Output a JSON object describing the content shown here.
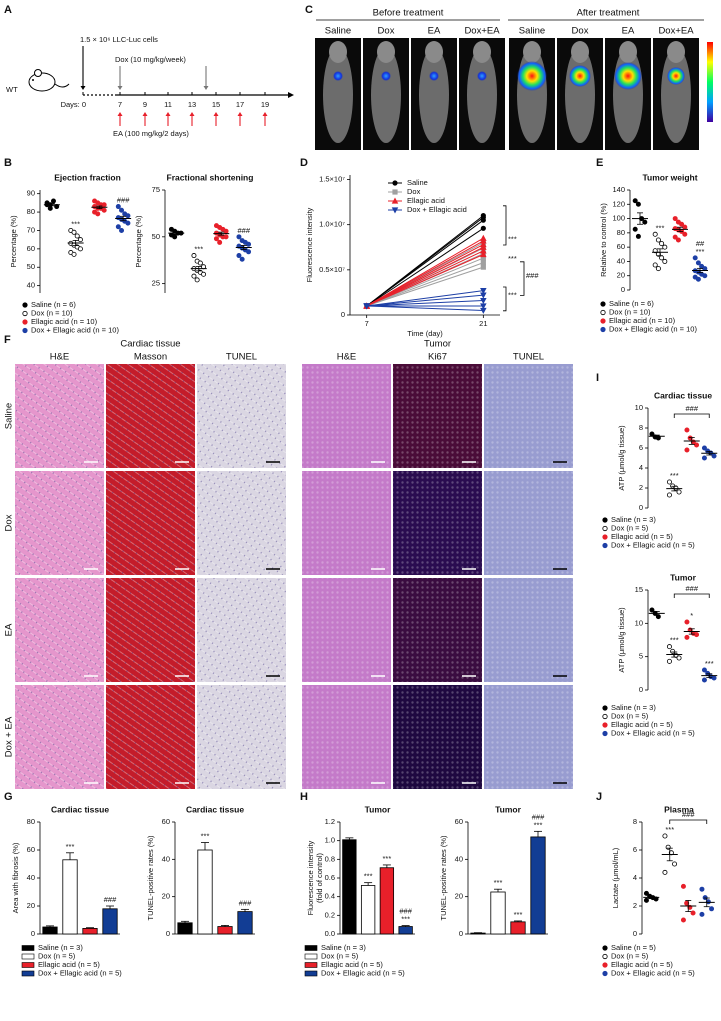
{
  "schematic": {
    "panel": "A",
    "strain": "WT",
    "cells": "1.5 × 10⁶ LLC-Luc cells",
    "dox": "Dox (10 mg/kg/week)",
    "ea": "EA (100 mg/kg/2 days)",
    "days_label": "Days: 0",
    "days": [
      "7",
      "9",
      "11",
      "13",
      "15",
      "17",
      "19"
    ]
  },
  "imaging": {
    "panel": "C",
    "before": "Before treatment",
    "after": "After treatment",
    "groups": [
      "Saline",
      "Dox",
      "EA",
      "Dox+EA"
    ]
  },
  "histology": {
    "panel": "F",
    "sections": [
      {
        "title": "Cardiac tissue",
        "stains": [
          "H&E",
          "Masson",
          "TUNEL"
        ]
      },
      {
        "title": "Tumor",
        "stains": [
          "H&E",
          "Ki67",
          "TUNEL"
        ]
      }
    ],
    "rows": [
      "Saline",
      "Dox",
      "EA",
      "Dox + EA"
    ]
  },
  "chart_data": [
    {
      "panel": "B",
      "type": "dot",
      "groups": [
        {
          "name": "Saline (n = 6)",
          "color": "#000000",
          "marker": "filled"
        },
        {
          "name": "Dox (n = 10)",
          "color": "#000000",
          "marker": "open"
        },
        {
          "name": "Ellagic acid (n = 10)",
          "color": "#e8202a",
          "marker": "filled"
        },
        {
          "name": "Dox + Ellagic acid (n = 10)",
          "color": "#1d3fa6",
          "marker": "filled"
        }
      ],
      "plots": [
        {
          "title": "Ejection fraction",
          "ylabel": "Percentage (%)",
          "ylim": [
            36,
            92
          ],
          "yticks": [
            40,
            50,
            60,
            70,
            80,
            90
          ],
          "values": [
            [
              85,
              84,
              86,
              83,
              84,
              82
            ],
            [
              70,
              69,
              67,
              65,
              63,
              62,
              61,
              60,
              58,
              57
            ],
            [
              86,
              85,
              84,
              84,
              83,
              82,
              82,
              81,
              80,
              79
            ],
            [
              83,
              81,
              79,
              78,
              77,
              76,
              75,
              74,
              72,
              70
            ]
          ],
          "means": [
            84,
            63.2,
            82.6,
            76.5
          ],
          "sems": [
            0.6,
            1.4,
            0.7,
            1.2
          ],
          "annotations": [
            null,
            [
              "***"
            ],
            null,
            [
              "###"
            ]
          ]
        },
        {
          "title": "Fractional shortening",
          "ylabel": "Percentage (%)",
          "ylim": [
            20,
            75
          ],
          "yticks": [
            25,
            50,
            75
          ],
          "values": [
            [
              54,
              53,
              52,
              52,
              51,
              50
            ],
            [
              40,
              37,
              36,
              34,
              33,
              32,
              31,
              30,
              29,
              27
            ],
            [
              56,
              55,
              54,
              53,
              52,
              51,
              50,
              50,
              49,
              47
            ],
            [
              50,
              48,
              47,
              46,
              45,
              44,
              43,
              42,
              40,
              38
            ]
          ],
          "means": [
            52,
            33,
            51.7,
            44.3
          ],
          "sems": [
            0.6,
            1.2,
            0.8,
            1.1
          ],
          "annotations": [
            null,
            [
              "***"
            ],
            null,
            [
              "###"
            ]
          ]
        }
      ]
    },
    {
      "panel": "D",
      "type": "line",
      "x": [
        7,
        21
      ],
      "xlim": [
        5,
        23
      ],
      "xticks": [
        7,
        21
      ],
      "xlabel": "Time (day)",
      "ylabel": "Fluorescence intensity",
      "ylim": [
        0,
        15500000
      ],
      "yticks": [
        0,
        {
          "value": 5000000,
          "label": "0.5×10⁷"
        },
        {
          "value": 10000000,
          "label": "1.0×10⁷"
        },
        {
          "value": 15000000,
          "label": "1.5×10⁷"
        }
      ],
      "series": [
        {
          "name": "Saline",
          "color": "#000000",
          "marker": "circle",
          "values": [
            [
              1000000,
              11000000
            ],
            [
              1000000,
              10800000
            ],
            [
              1000000,
              10500000
            ],
            [
              1000000,
              9600000
            ]
          ]
        },
        {
          "name": "Dox",
          "color": "#a0a0a0",
          "marker": "square",
          "values": [
            [
              1000000,
              8000000
            ],
            [
              1000000,
              7400000
            ],
            [
              1000000,
              6800000
            ],
            [
              1000000,
              6300000
            ],
            [
              1000000,
              5800000
            ],
            [
              1000000,
              5300000
            ]
          ]
        },
        {
          "name": "Ellagic acid",
          "color": "#e8202a",
          "marker": "triangle",
          "values": [
            [
              1000000,
              8500000
            ],
            [
              1000000,
              8200000
            ],
            [
              1000000,
              7800000
            ],
            [
              1000000,
              7500000
            ],
            [
              1000000,
              7100000
            ],
            [
              1000000,
              6700000
            ]
          ]
        },
        {
          "name": "Dox + Ellagic acid",
          "color": "#1d3fa6",
          "marker": "triangle-down",
          "values": [
            [
              1000000,
              2700000
            ],
            [
              1000000,
              2200000
            ],
            [
              1000000,
              1600000
            ],
            [
              1000000,
              1000000
            ],
            [
              1000000,
              500000
            ]
          ]
        }
      ],
      "annotations": [
        "***",
        "***",
        "***",
        "###"
      ]
    },
    {
      "panel": "E",
      "type": "dot",
      "groups": [
        {
          "name": "Saline (n = 6)",
          "color": "#000000",
          "marker": "filled"
        },
        {
          "name": "Dox (n = 10)",
          "color": "#000000",
          "marker": "open"
        },
        {
          "name": "Ellagic acid (n = 10)",
          "color": "#e8202a",
          "marker": "filled"
        },
        {
          "name": "Dox + Ellagic acid (n = 10)",
          "color": "#1d3fa6",
          "marker": "filled"
        }
      ],
      "plots": [
        {
          "title": "Tumor weight",
          "ylabel": "Relative to control (%)",
          "ylim": [
            0,
            140
          ],
          "yticks": [
            0,
            20,
            40,
            60,
            80,
            100,
            120,
            140
          ],
          "values": [
            [
              125,
              120,
              100,
              95,
              85,
              75
            ],
            [
              78,
              70,
              65,
              60,
              55,
              50,
              45,
              40,
              35,
              30
            ],
            [
              100,
              95,
              92,
              88,
              86,
              84,
              82,
              78,
              74,
              70
            ],
            [
              45,
              38,
              33,
              30,
              27,
              25,
              22,
              20,
              18,
              15
            ]
          ],
          "means": [
            100,
            52.8,
            84.9,
            27.3
          ],
          "sems": [
            8,
            4.8,
            3,
            3
          ],
          "annotations": [
            null,
            [
              "***"
            ],
            null,
            [
              "##",
              "***"
            ]
          ]
        }
      ]
    },
    {
      "panel": "I",
      "type": "dot",
      "groups": [
        {
          "name": "Saline (n = 3)",
          "color": "#000000",
          "marker": "filled"
        },
        {
          "name": "Dox (n = 5)",
          "color": "#000000",
          "marker": "open"
        },
        {
          "name": "Ellagic acid (n = 5)",
          "color": "#e8202a",
          "marker": "filled"
        },
        {
          "name": "Dox + Ellagic acid (n = 5)",
          "color": "#1d3fa6",
          "marker": "filled"
        }
      ],
      "plots": [
        {
          "title": "Cardiac tissue",
          "ylabel": "ATP (μmol/g tissue)",
          "ylim": [
            0,
            10
          ],
          "yticks": [
            0,
            2,
            4,
            6,
            8,
            10
          ],
          "values": [
            [
              7.4,
              7.1,
              7.0
            ],
            [
              2.6,
              2.2,
              2.0,
              1.6,
              1.3
            ],
            [
              7.8,
              7.0,
              6.6,
              6.3,
              5.8
            ],
            [
              6.0,
              5.7,
              5.5,
              5.2,
              5.0
            ]
          ],
          "means": [
            7.17,
            1.94,
            6.7,
            5.48
          ],
          "sems": [
            0.12,
            0.23,
            0.34,
            0.18
          ],
          "annotations": [
            null,
            [
              "***"
            ],
            null,
            null
          ],
          "bracket": {
            "from": 1,
            "to": 3,
            "label": "###"
          }
        }
      ]
    },
    {
      "type": "dot",
      "groups": [
        {
          "name": "Saline (n = 3)",
          "color": "#000000",
          "marker": "filled"
        },
        {
          "name": "Dox (n = 5)",
          "color": "#000000",
          "marker": "open"
        },
        {
          "name": "Ellagic acid (n = 5)",
          "color": "#e8202a",
          "marker": "filled"
        },
        {
          "name": "Dox + Ellagic acid (n = 5)",
          "color": "#1d3fa6",
          "marker": "filled"
        }
      ],
      "plots": [
        {
          "title": "Tumor",
          "ylabel": "ATP (μmol/g tissue)",
          "ylim": [
            0,
            15
          ],
          "yticks": [
            0,
            5,
            10,
            15
          ],
          "values": [
            [
              12,
              11.5,
              11
            ],
            [
              6.5,
              5.8,
              5.2,
              4.8,
              4.3
            ],
            [
              10.2,
              9.0,
              8.5,
              8.3,
              7.9
            ],
            [
              3.0,
              2.5,
              2.0,
              1.8,
              1.5
            ]
          ],
          "means": [
            11.5,
            5.32,
            8.78,
            2.16
          ],
          "sems": [
            0.29,
            0.38,
            0.4,
            0.27
          ],
          "annotations": [
            null,
            [
              "***"
            ],
            [
              "*"
            ],
            [
              "***"
            ]
          ],
          "bracket": {
            "from": 1,
            "to": 3,
            "label": "###"
          }
        }
      ]
    },
    {
      "panel": "G",
      "type": "bar",
      "groups": [
        {
          "name": "Saline (n = 3)",
          "color": "#000000"
        },
        {
          "name": "Dox (n = 5)",
          "color": "#ffffff"
        },
        {
          "name": "Ellagic acid (n = 5)",
          "color": "#e8202a"
        },
        {
          "name": "Dox + Ellagic acid (n = 5)",
          "color": "#123d94"
        }
      ],
      "plots": [
        {
          "title": "Cardiac tissue",
          "ylabel": "Area with fibrosis (%)",
          "ylim": [
            0,
            80
          ],
          "yticks": [
            0,
            20,
            40,
            60,
            80
          ],
          "values": [
            5,
            53,
            4,
            18
          ],
          "errors": [
            0.8,
            5,
            0.5,
            2
          ],
          "annotations": [
            null,
            [
              "***"
            ],
            null,
            [
              "###"
            ]
          ]
        },
        {
          "title": "Cardiac tissue",
          "ylabel": "TUNEL-positive rates (%)",
          "ylim": [
            0,
            60
          ],
          "yticks": [
            0,
            20,
            40,
            60
          ],
          "values": [
            6,
            45,
            4,
            12
          ],
          "errors": [
            0.8,
            4,
            0.6,
            1.2
          ],
          "annotations": [
            null,
            [
              "***"
            ],
            null,
            [
              "###"
            ]
          ]
        }
      ]
    },
    {
      "panel": "H",
      "type": "bar",
      "groups": [
        {
          "name": "Saline (n = 3)",
          "color": "#000000"
        },
        {
          "name": "Dox (n = 5)",
          "color": "#ffffff"
        },
        {
          "name": "Ellagic acid (n = 5)",
          "color": "#e8202a"
        },
        {
          "name": "Dox + Ellagic acid (n = 5)",
          "color": "#123d94"
        }
      ],
      "plots": [
        {
          "title": "Tumor",
          "ylabel": [
            "Fluorescence intensity",
            "(fold of control)"
          ],
          "ylim": [
            0,
            1.2
          ],
          "yticks": [
            {
              "value": 0,
              "label": "0.0"
            },
            0.2,
            0.4,
            0.6,
            0.8,
            {
              "value": 1,
              "label": "1.0"
            },
            1.2
          ],
          "values": [
            1.01,
            0.52,
            0.71,
            0.08
          ],
          "errors": [
            0.02,
            0.03,
            0.03,
            0.01
          ],
          "annotations": [
            null,
            [
              "***"
            ],
            [
              "***"
            ],
            [
              "###",
              "***"
            ]
          ]
        },
        {
          "title": "Tumor",
          "ylabel": "TUNEL-positive rates (%)",
          "ylim": [
            0,
            60
          ],
          "yticks": [
            0,
            20,
            40,
            60
          ],
          "values": [
            0.5,
            22.5,
            6.5,
            52
          ],
          "errors": [
            0.2,
            1.5,
            0.5,
            3
          ],
          "annotations": [
            null,
            [
              "***"
            ],
            [
              "***"
            ],
            [
              "###",
              "***"
            ]
          ]
        }
      ]
    },
    {
      "panel": "J",
      "type": "dot",
      "groups": [
        {
          "name": "Saline (n = 5)",
          "color": "#000000",
          "marker": "filled"
        },
        {
          "name": "Dox (n = 5)",
          "color": "#000000",
          "marker": "open"
        },
        {
          "name": "Ellagic acid (n = 5)",
          "color": "#e8202a",
          "marker": "filled"
        },
        {
          "name": "Dox + Ellagic acid (n = 5)",
          "color": "#1d3fa6",
          "marker": "filled"
        }
      ],
      "plots": [
        {
          "title": "Plasma",
          "ylabel": "Lactate (μmol/mL)",
          "ylim": [
            0,
            8
          ],
          "yticks": [
            0,
            2,
            4,
            6,
            8
          ],
          "values": [
            [
              2.9,
              2.7,
              2.6,
              2.5,
              2.4
            ],
            [
              7.0,
              6.2,
              5.8,
              5.0,
              4.4
            ],
            [
              3.4,
              2.2,
              1.9,
              1.5,
              1.0
            ],
            [
              3.2,
              2.6,
              2.3,
              1.8,
              1.4
            ]
          ],
          "means": [
            2.62,
            5.68,
            2.0,
            2.26
          ],
          "sems": [
            0.09,
            0.45,
            0.4,
            0.31
          ],
          "annotations": [
            null,
            [
              "***"
            ],
            null,
            null
          ],
          "bracket": {
            "from": 1,
            "to": 3,
            "label": "###"
          }
        }
      ]
    }
  ]
}
